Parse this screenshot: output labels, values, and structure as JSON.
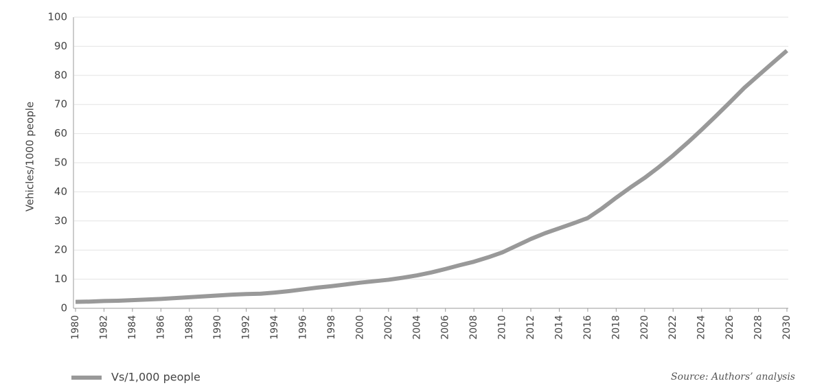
{
  "chart_data": {
    "type": "line",
    "y_label": "Vehicles/1000 people",
    "source": "Source: Authors’ analysis",
    "x": [
      1980,
      1981,
      1982,
      1983,
      1984,
      1985,
      1986,
      1987,
      1988,
      1989,
      1990,
      1991,
      1992,
      1993,
      1994,
      1995,
      1996,
      1997,
      1998,
      1999,
      2000,
      2001,
      2002,
      2003,
      2004,
      2005,
      2006,
      2007,
      2008,
      2009,
      2010,
      2011,
      2012,
      2013,
      2014,
      2015,
      2016,
      2017,
      2018,
      2019,
      2020,
      2021,
      2022,
      2023,
      2024,
      2025,
      2026,
      2027,
      2028,
      2029,
      2030
    ],
    "series": [
      {
        "name": "Vs/1,000 people",
        "color": "#999999",
        "values": [
          2.2,
          2.3,
          2.5,
          2.6,
          2.8,
          3.0,
          3.2,
          3.5,
          3.8,
          4.1,
          4.4,
          4.7,
          4.9,
          5.0,
          5.4,
          5.9,
          6.5,
          7.1,
          7.6,
          8.2,
          8.8,
          9.3,
          9.8,
          10.5,
          11.3,
          12.3,
          13.5,
          14.8,
          16.0,
          17.5,
          19.2,
          21.5,
          23.8,
          25.8,
          27.5,
          29.2,
          31.0,
          34.3,
          38.0,
          41.5,
          44.8,
          48.5,
          52.5,
          56.8,
          61.3,
          66.0,
          70.8,
          75.7,
          80.0,
          84.3,
          88.5
        ]
      }
    ],
    "xlim": [
      1980,
      2030
    ],
    "xticks": [
      1980,
      1982,
      1984,
      1986,
      1988,
      1990,
      1992,
      1994,
      1996,
      1998,
      2000,
      2002,
      2004,
      2006,
      2008,
      2010,
      2012,
      2014,
      2016,
      2018,
      2020,
      2022,
      2024,
      2026,
      2028,
      2030
    ],
    "ylim": [
      0,
      100
    ],
    "yticks": [
      0,
      10,
      20,
      30,
      40,
      50,
      60,
      70,
      80,
      90,
      100
    ],
    "grid": true
  }
}
